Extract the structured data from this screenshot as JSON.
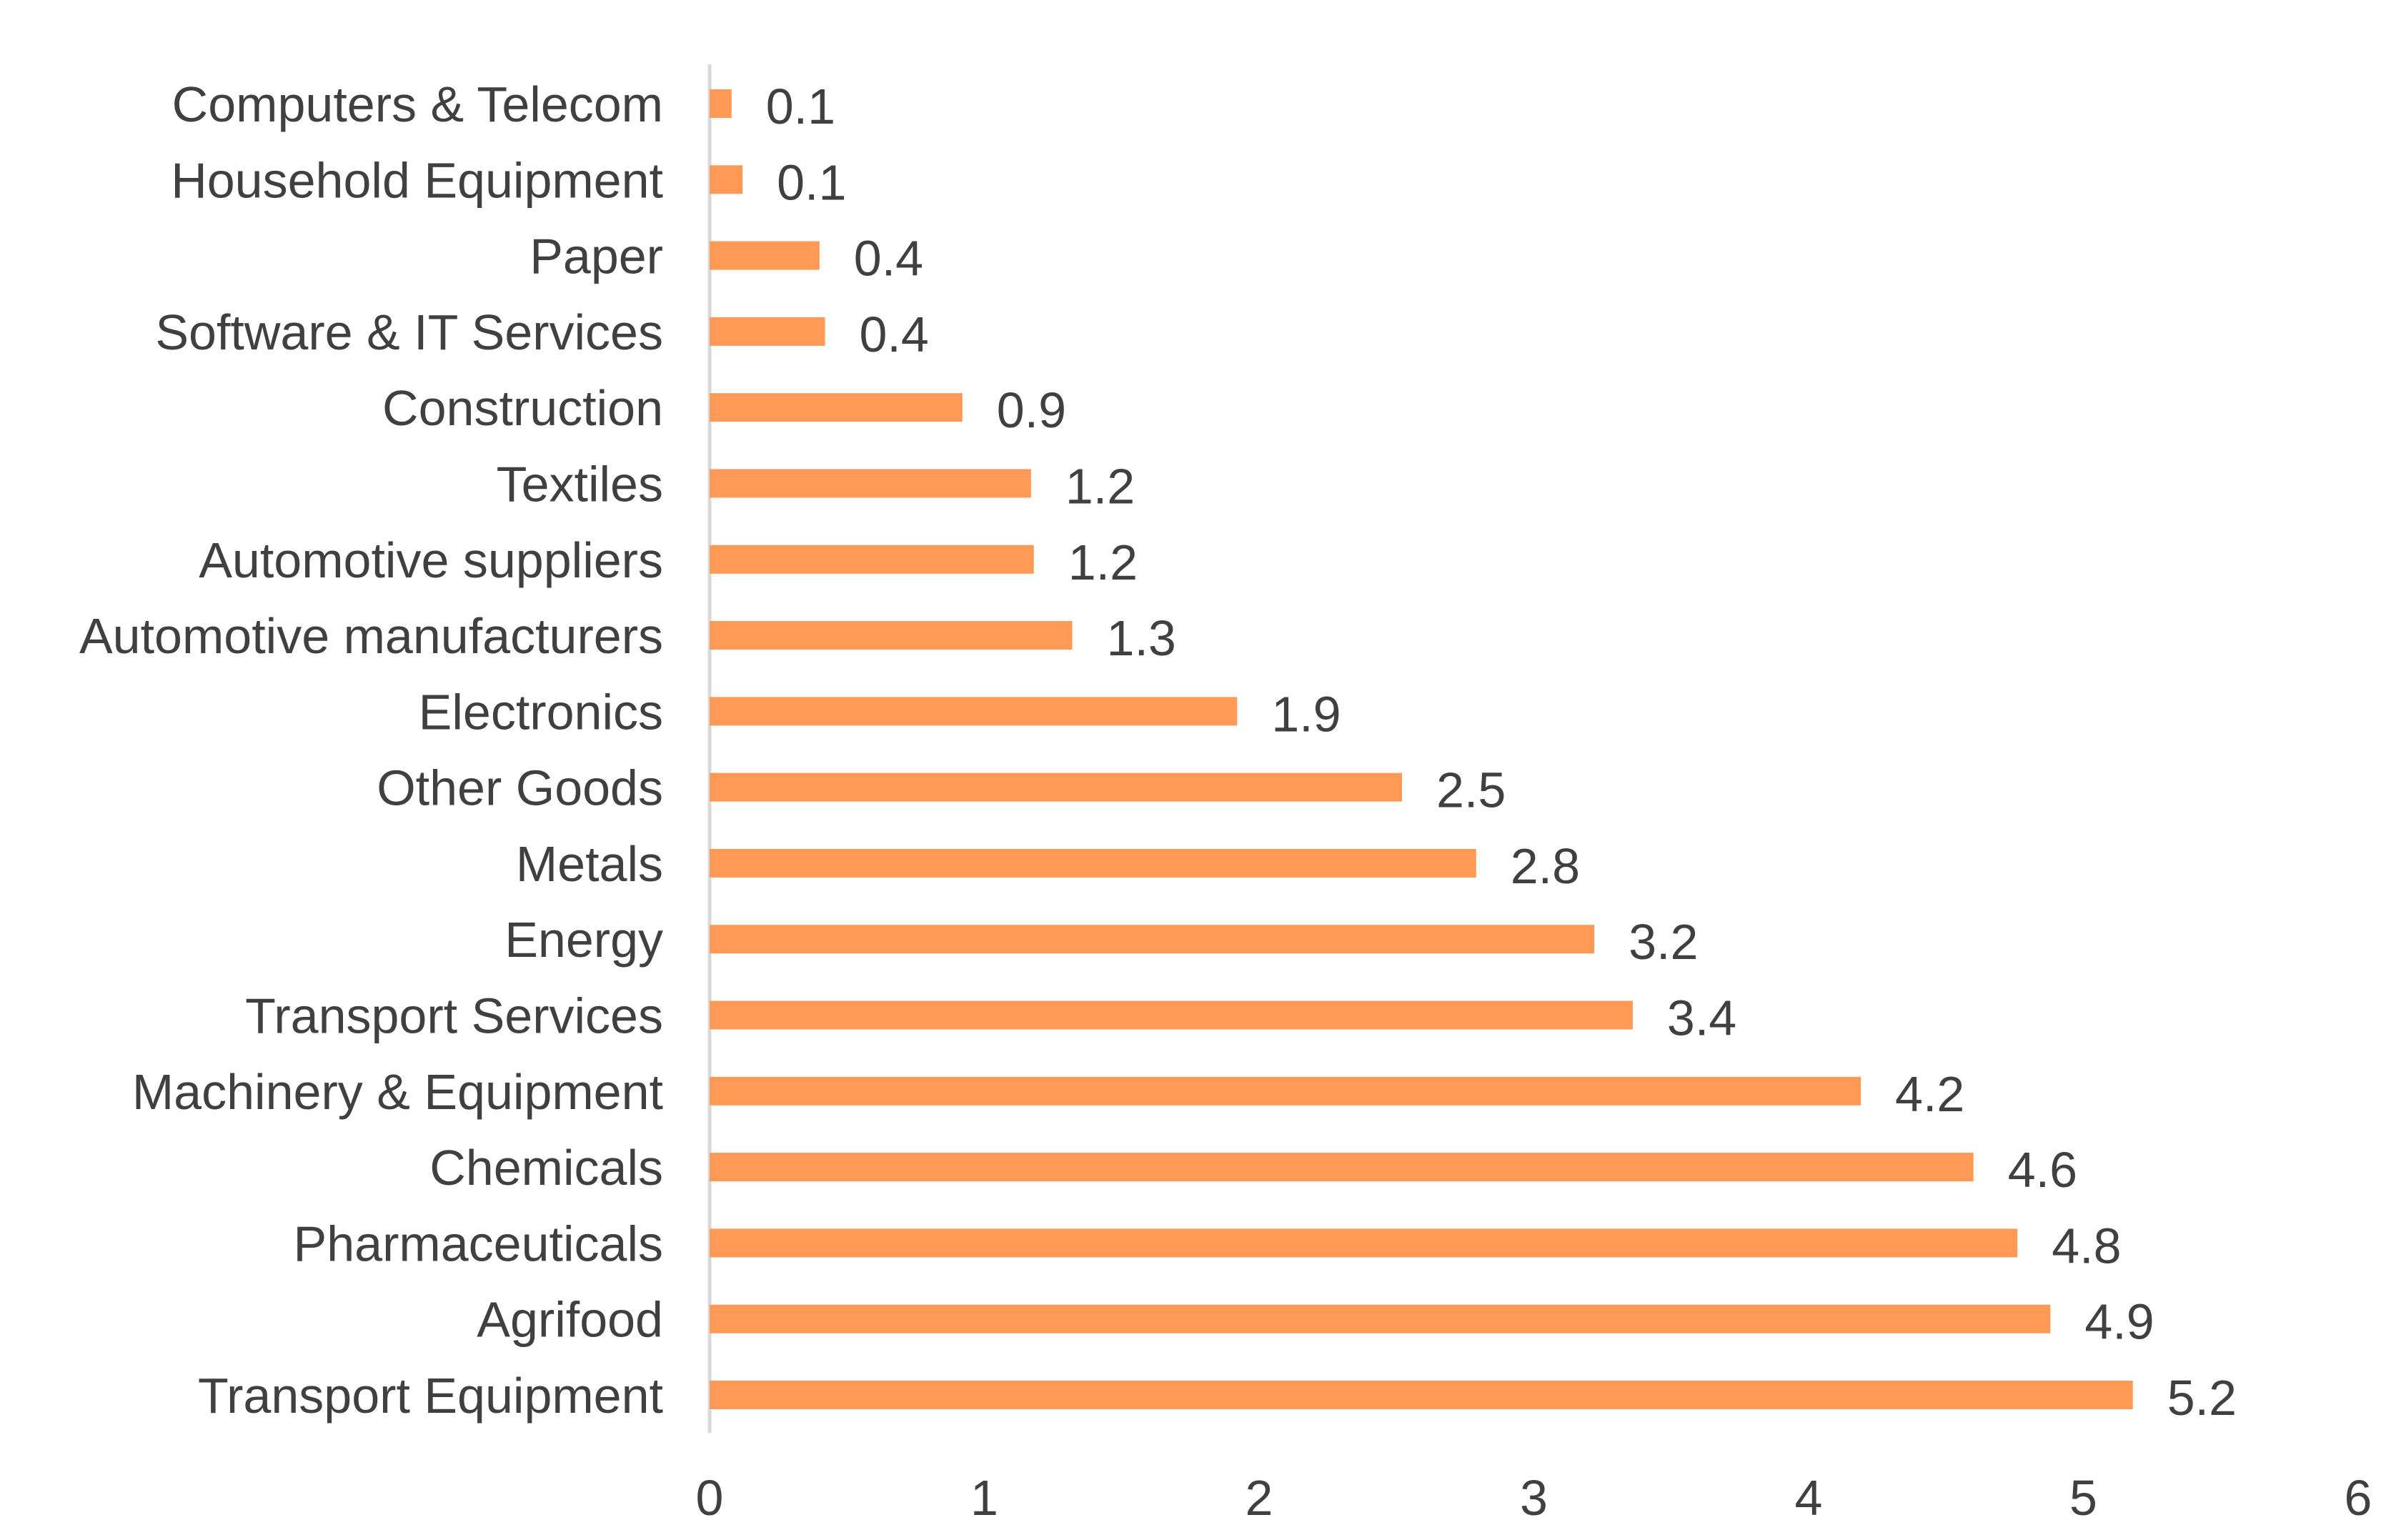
{
  "chart_data": {
    "type": "bar",
    "orientation": "horizontal",
    "categories": [
      "Computers & Telecom",
      "Household Equipment",
      "Paper",
      "Software & IT Services",
      "Construction",
      "Textiles",
      "Automotive suppliers",
      "Automotive manufacturers",
      "Electronics",
      "Other Goods",
      "Metals",
      "Energy",
      "Transport Services",
      "Machinery & Equipment",
      "Chemicals",
      "Pharmaceuticals",
      "Agrifood",
      "Transport Equipment"
    ],
    "values": [
      0.08,
      0.12,
      0.4,
      0.42,
      0.92,
      1.17,
      1.18,
      1.32,
      1.92,
      2.52,
      2.79,
      3.22,
      3.36,
      4.19,
      4.6,
      4.76,
      4.88,
      5.18
    ],
    "data_labels": [
      "0.1",
      "0.1",
      "0.4",
      "0.4",
      "0.9",
      "1.2",
      "1.2",
      "1.3",
      "1.9",
      "2.5",
      "2.8",
      "3.2",
      "3.4",
      "4.2",
      "4.6",
      "4.8",
      "4.9",
      "5.2"
    ],
    "xlim": [
      0,
      6
    ],
    "x_ticks": [
      "0",
      "1",
      "2",
      "3",
      "4",
      "5",
      "6"
    ],
    "title": "",
    "xlabel": "",
    "ylabel": "",
    "grid": false,
    "legend": "none",
    "bar_color": "#FF9955",
    "axis_color": "#D9D9D9",
    "text_color": "#404040"
  }
}
